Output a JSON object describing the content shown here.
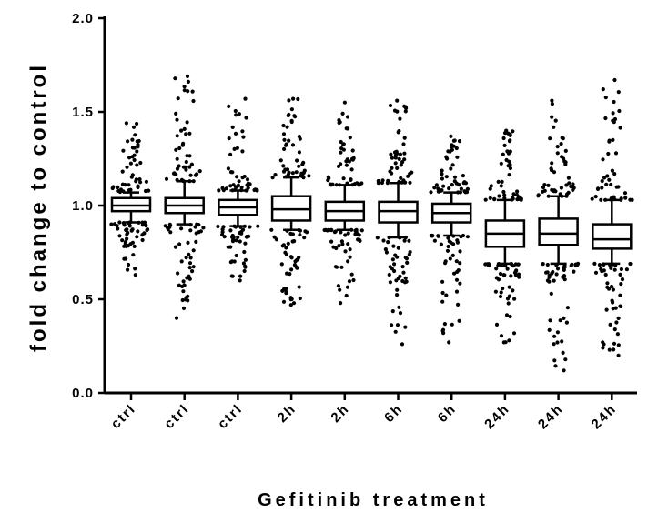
{
  "chart_data": {
    "type": "box",
    "xlabel": "Gefitinib treatment",
    "ylabel": "fold change to control",
    "ylim": [
      0.0,
      2.0
    ],
    "yticks": [
      "0.0",
      "0.5",
      "1.0",
      "1.5",
      "2.0"
    ],
    "ytick_values": [
      0.0,
      0.5,
      1.0,
      1.5,
      2.0
    ],
    "categories": [
      "ctrl",
      "ctrl",
      "ctrl",
      "2h",
      "2h",
      "6h",
      "6h",
      "24h",
      "24h",
      "24h"
    ],
    "grid": false,
    "legend": "none",
    "series": [
      {
        "category": "ctrl",
        "q1": 0.97,
        "median": 1.0,
        "q3": 1.04,
        "whisker_low": 0.91,
        "whisker_high": 1.07,
        "min": 0.63,
        "max": 1.44
      },
      {
        "category": "ctrl",
        "q1": 0.96,
        "median": 1.0,
        "q3": 1.04,
        "whisker_low": 0.9,
        "whisker_high": 1.13,
        "min": 0.4,
        "max": 1.69
      },
      {
        "category": "ctrl",
        "q1": 0.95,
        "median": 0.99,
        "q3": 1.03,
        "whisker_low": 0.89,
        "whisker_high": 1.08,
        "min": 0.6,
        "max": 1.57
      },
      {
        "category": "2h",
        "q1": 0.92,
        "median": 0.98,
        "q3": 1.05,
        "whisker_low": 0.87,
        "whisker_high": 1.15,
        "min": 0.47,
        "max": 1.57
      },
      {
        "category": "2h",
        "q1": 0.92,
        "median": 0.97,
        "q3": 1.02,
        "whisker_low": 0.87,
        "whisker_high": 1.11,
        "min": 0.48,
        "max": 1.55
      },
      {
        "category": "6h",
        "q1": 0.91,
        "median": 0.97,
        "q3": 1.02,
        "whisker_low": 0.83,
        "whisker_high": 1.12,
        "min": 0.26,
        "max": 1.56
      },
      {
        "category": "6h",
        "q1": 0.91,
        "median": 0.96,
        "q3": 1.01,
        "whisker_low": 0.84,
        "whisker_high": 1.07,
        "min": 0.27,
        "max": 1.37
      },
      {
        "category": "24h",
        "q1": 0.78,
        "median": 0.85,
        "q3": 0.92,
        "whisker_low": 0.69,
        "whisker_high": 1.03,
        "min": 0.27,
        "max": 1.4
      },
      {
        "category": "24h",
        "q1": 0.79,
        "median": 0.85,
        "q3": 0.93,
        "whisker_low": 0.69,
        "whisker_high": 1.05,
        "min": 0.12,
        "max": 1.56
      },
      {
        "category": "24h",
        "q1": 0.77,
        "median": 0.82,
        "q3": 0.9,
        "whisker_low": 0.69,
        "whisker_high": 1.03,
        "min": 0.2,
        "max": 1.67
      }
    ]
  }
}
